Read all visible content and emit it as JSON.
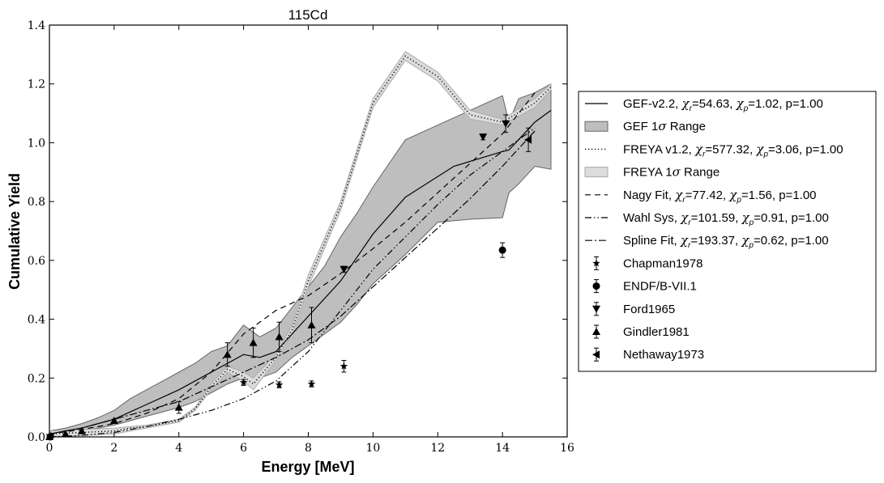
{
  "chart_data": {
    "type": "line",
    "title": "115Cd",
    "xlabel": "Energy [MeV]",
    "ylabel": "Cumulative Yield",
    "xlim": [
      0,
      16
    ],
    "ylim": [
      0,
      1.4
    ],
    "x_ticks": [
      "0",
      "2",
      "4",
      "6",
      "8",
      "10",
      "12",
      "14",
      "16"
    ],
    "y_ticks": [
      "0.0",
      "0.2",
      "0.4",
      "0.6",
      "0.8",
      "1.0",
      "1.2",
      "1.4"
    ],
    "grid": false,
    "legend_position": "right, outside the plot",
    "bands": [
      {
        "name": "GEF 1σ Range",
        "color": "#bebebe",
        "edge": "#666666",
        "x": [
          0,
          0.5,
          1,
          1.5,
          2,
          2.5,
          3,
          3.5,
          4,
          4.5,
          5,
          5.5,
          6,
          6.5,
          7,
          7.5,
          8,
          8.5,
          9,
          9.5,
          10,
          11,
          12,
          13,
          14,
          14.2,
          14.5,
          15,
          15.5
        ],
        "upper": [
          0.02,
          0.03,
          0.045,
          0.065,
          0.09,
          0.13,
          0.16,
          0.19,
          0.22,
          0.25,
          0.29,
          0.31,
          0.38,
          0.34,
          0.37,
          0.44,
          0.51,
          0.58,
          0.68,
          0.76,
          0.85,
          1.01,
          1.06,
          1.11,
          1.16,
          1.07,
          1.15,
          1.17,
          1.2
        ],
        "lower": [
          0.0,
          0.01,
          0.02,
          0.03,
          0.04,
          0.055,
          0.07,
          0.085,
          0.1,
          0.12,
          0.15,
          0.18,
          0.2,
          0.2,
          0.22,
          0.27,
          0.31,
          0.35,
          0.39,
          0.45,
          0.52,
          0.62,
          0.73,
          0.74,
          0.745,
          0.83,
          0.86,
          0.92,
          0.91
        ]
      },
      {
        "name": "FREYA 1σ Range",
        "color": "#dcdcdc",
        "edge": "#aaaaaa",
        "x": [
          0,
          1,
          2,
          2.5,
          3,
          4,
          4.5,
          5,
          5.5,
          6,
          6.3,
          7,
          7.5,
          8,
          9,
          10,
          11,
          12,
          13,
          14,
          15,
          15.5
        ],
        "upper": [
          0.02,
          0.025,
          0.03,
          0.035,
          0.04,
          0.06,
          0.1,
          0.18,
          0.24,
          0.22,
          0.2,
          0.28,
          0.38,
          0.55,
          0.8,
          1.15,
          1.31,
          1.24,
          1.11,
          1.08,
          1.15,
          1.2
        ],
        "lower": [
          0.0,
          0.005,
          0.01,
          0.02,
          0.03,
          0.05,
          0.09,
          0.16,
          0.22,
          0.19,
          0.16,
          0.26,
          0.35,
          0.51,
          0.77,
          1.12,
          1.28,
          1.21,
          1.08,
          1.06,
          1.12,
          1.18
        ]
      }
    ],
    "series": [
      {
        "name": "GEF-v2.2, χr=54.63, χp=1.02, p=1.00",
        "dash": "solid",
        "color": "#000000",
        "x": [
          0,
          0.5,
          1,
          2,
          3,
          4,
          5,
          5.5,
          6,
          6.5,
          7,
          8,
          9,
          10,
          11,
          12.5,
          14,
          14.2,
          15,
          15.5
        ],
        "y": [
          0.01,
          0.02,
          0.03,
          0.06,
          0.11,
          0.16,
          0.22,
          0.25,
          0.28,
          0.27,
          0.29,
          0.41,
          0.53,
          0.69,
          0.815,
          0.92,
          0.97,
          0.975,
          1.07,
          1.11
        ]
      },
      {
        "name": "FREYA v1.2, χr=577.32, χp=3.06, p=1.00",
        "dash": "dotted",
        "color": "#000000",
        "x": [
          0,
          1,
          2,
          2.5,
          3,
          4,
          4.5,
          5,
          5.5,
          6,
          6.3,
          7,
          7.5,
          8,
          9,
          10,
          11,
          12,
          13,
          14,
          15,
          15.5
        ],
        "y": [
          0.01,
          0.015,
          0.02,
          0.03,
          0.035,
          0.055,
          0.095,
          0.17,
          0.23,
          0.205,
          0.18,
          0.27,
          0.365,
          0.53,
          0.785,
          1.135,
          1.295,
          1.225,
          1.095,
          1.07,
          1.135,
          1.19
        ]
      },
      {
        "name": "Nagy Fit, χr=77.42, χp=1.56, p=1.00",
        "dash": "dashed",
        "color": "#000000",
        "x": [
          0,
          1,
          2,
          3,
          4,
          5,
          6,
          7,
          8,
          9,
          10,
          11,
          12,
          13,
          14,
          15
        ],
        "y": [
          0.01,
          0.025,
          0.045,
          0.08,
          0.13,
          0.22,
          0.35,
          0.43,
          0.48,
          0.555,
          0.64,
          0.73,
          0.83,
          0.93,
          1.03,
          1.17
        ]
      },
      {
        "name": "Wahl Sys, χr=101.59, χp=0.91, p=1.00",
        "dash": "dashdotdot",
        "color": "#000000",
        "x": [
          0,
          1,
          2,
          3,
          4,
          5,
          6,
          7,
          8,
          9,
          10,
          11,
          12,
          13,
          14,
          15
        ],
        "y": [
          0.0,
          0.005,
          0.015,
          0.035,
          0.06,
          0.09,
          0.13,
          0.19,
          0.29,
          0.43,
          0.57,
          0.68,
          0.79,
          0.89,
          0.97,
          1.05
        ]
      },
      {
        "name": "Spline Fit, χr=193.37, χp=0.62, p=1.00",
        "dash": "dashdot",
        "color": "#000000",
        "x": [
          0,
          1,
          2,
          3,
          4,
          5,
          6,
          7,
          8,
          9,
          10,
          11,
          12,
          13,
          14,
          15
        ],
        "y": [
          0.01,
          0.03,
          0.06,
          0.09,
          0.12,
          0.17,
          0.22,
          0.27,
          0.33,
          0.41,
          0.51,
          0.61,
          0.71,
          0.81,
          0.92,
          1.04
        ]
      }
    ],
    "points": [
      {
        "name": "Chapman1978",
        "marker": "star",
        "data": [
          [
            0,
            0.005,
            0
          ],
          [
            0.05,
            0.005,
            0
          ],
          [
            6.0,
            0.185,
            0.01
          ],
          [
            7.1,
            0.177,
            0.01
          ],
          [
            8.1,
            0.18,
            0.01
          ],
          [
            9.1,
            0.24,
            0.02
          ]
        ]
      },
      {
        "name": "ENDF/B-VII.1",
        "marker": "circle",
        "data": [
          [
            0.0253,
            0.0,
            0
          ],
          [
            14.0,
            0.635,
            0.025
          ]
        ]
      },
      {
        "name": "Ford1965",
        "marker": "triangle-down",
        "data": [
          [
            9.1,
            0.57,
            0.01
          ],
          [
            13.4,
            1.02,
            0.01
          ],
          [
            14.1,
            1.065,
            0.03
          ]
        ]
      },
      {
        "name": "Gindler1981",
        "marker": "triangle-up",
        "data": [
          [
            0.0,
            0.0,
            0
          ],
          [
            0.5,
            0.01,
            0
          ],
          [
            1.0,
            0.02,
            0
          ],
          [
            2.0,
            0.055,
            0.005
          ],
          [
            4.0,
            0.1,
            0.02
          ],
          [
            5.5,
            0.28,
            0.04
          ],
          [
            6.3,
            0.32,
            0.05
          ],
          [
            7.1,
            0.34,
            0.05
          ],
          [
            8.1,
            0.38,
            0.06
          ]
        ]
      },
      {
        "name": "Nethaway1973",
        "marker": "triangle-left",
        "data": [
          [
            14.8,
            1.01,
            0.04
          ]
        ]
      }
    ]
  },
  "legend": {
    "entries": [
      {
        "kind": "line",
        "dash": "solid",
        "text": "GEF-v2.2, ",
        "chi_r": "=54.63, ",
        "chi_p": "=1.02, p=1.00"
      },
      {
        "kind": "band",
        "color": "#bebebe",
        "text": "GEF 1",
        "sigma_text": " Range"
      },
      {
        "kind": "line",
        "dash": "dotted",
        "text": "FREYA v1.2, ",
        "chi_r": "=577.32, ",
        "chi_p": "=3.06, p=1.00"
      },
      {
        "kind": "band",
        "color": "#dcdcdc",
        "text": "FREYA 1",
        "sigma_text": " Range"
      },
      {
        "kind": "line",
        "dash": "dashed",
        "text": "Nagy Fit, ",
        "chi_r": "=77.42, ",
        "chi_p": "=1.56, p=1.00"
      },
      {
        "kind": "line",
        "dash": "dashdotdot",
        "text": "Wahl Sys, ",
        "chi_r": "=101.59, ",
        "chi_p": "=0.91, p=1.00"
      },
      {
        "kind": "line",
        "dash": "dashdot",
        "text": "Spline Fit, ",
        "chi_r": "=193.37, ",
        "chi_p": "=0.62, p=1.00"
      },
      {
        "kind": "marker",
        "marker": "star",
        "text": "Chapman1978"
      },
      {
        "kind": "marker",
        "marker": "circle",
        "text": "ENDF/B-VII.1"
      },
      {
        "kind": "marker",
        "marker": "triangle-down",
        "text": "Ford1965"
      },
      {
        "kind": "marker",
        "marker": "triangle-up",
        "text": "Gindler1981"
      },
      {
        "kind": "marker",
        "marker": "triangle-left",
        "text": "Nethaway1973"
      }
    ],
    "chi_symbol": "χ",
    "r_sub": "r",
    "p_sub": "p",
    "sigma": "σ"
  }
}
